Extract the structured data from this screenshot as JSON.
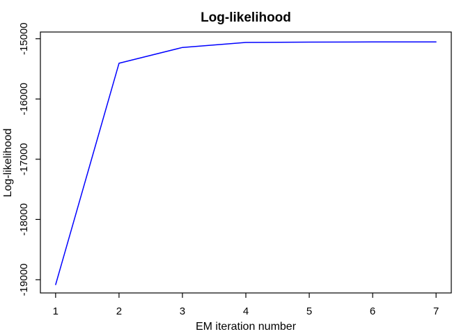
{
  "figure": {
    "background": "#ffffff"
  },
  "chart_data": {
    "type": "line",
    "title": "Log-likelihood",
    "xlabel": "EM iteration number",
    "ylabel": "Log-likelihood",
    "x": [
      1,
      2,
      3,
      4,
      5,
      6,
      7
    ],
    "y": [
      -19081,
      -15407,
      -15145,
      -15061,
      -15055,
      -15053,
      -15052
    ],
    "series_name": "log-likelihood",
    "x_tick_values": [
      1,
      2,
      3,
      4,
      5,
      6,
      7
    ],
    "x_tick_labels": [
      "1",
      "2",
      "3",
      "4",
      "5",
      "6",
      "7"
    ],
    "y_tick_values": [
      -15000,
      -16000,
      -17000,
      -18000,
      -19000
    ],
    "y_tick_labels": [
      "-15000",
      "-16000",
      "-17000",
      "-18000",
      "-19000"
    ],
    "xlim": [
      0.76,
      7.24
    ],
    "ylim": [
      -19220,
      -14888
    ],
    "grid": false,
    "legend": null,
    "line_color": "#0000ff",
    "axis_color": "#000000",
    "text_color": "#000000",
    "background": "#ffffff"
  }
}
